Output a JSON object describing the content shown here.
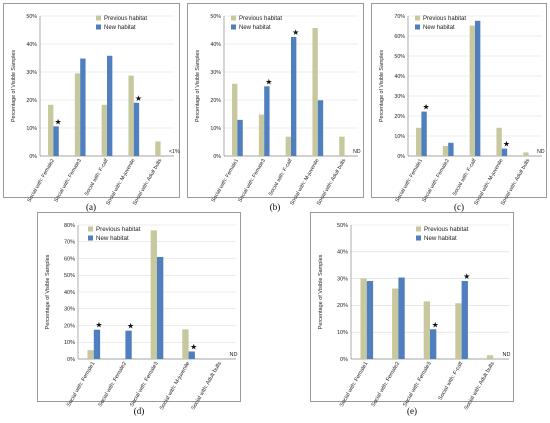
{
  "legend_colors": {
    "previous": "#c8c89e",
    "new": "#4f7fbf"
  },
  "chart_data": [
    {
      "panel": "(a)",
      "type": "bar",
      "ylabel": "Percentage of Visible Samples",
      "ylim": [
        0,
        50
      ],
      "yticks": [
        "0%",
        "10%",
        "20%",
        "30%",
        "40%",
        "50%"
      ],
      "legend": "top-right",
      "categories": [
        "Social with: Female2",
        "Social with: Female3",
        "Social with: F-calf",
        "Social with: M-juvenile",
        "Social with: Adult bulls"
      ],
      "series": [
        {
          "name": "Previous habitat",
          "values": [
            18.3,
            29.5,
            18.3,
            28.7,
            5.2
          ]
        },
        {
          "name": "New habitat",
          "values": [
            10.6,
            34.8,
            35.8,
            19.0,
            null
          ]
        }
      ],
      "stars": [
        0,
        3
      ],
      "annotations": [
        {
          "category": 4,
          "text": "<1%"
        }
      ]
    },
    {
      "panel": "(b)",
      "type": "bar",
      "ylabel": "Percentage of Visible Samples",
      "ylim": [
        0,
        50
      ],
      "yticks": [
        "0%",
        "10%",
        "20%",
        "30%",
        "40%",
        "50%"
      ],
      "legend": "top-left",
      "categories": [
        "Social with: Female1",
        "Social with: Female3",
        "Social with: F-calf",
        "Social with: M-juvenile",
        "Social with: Adult bulls"
      ],
      "series": [
        {
          "name": "Previous habitat",
          "values": [
            25.8,
            14.8,
            6.9,
            45.7,
            6.9
          ]
        },
        {
          "name": "New habitat",
          "values": [
            12.9,
            24.9,
            42.5,
            19.9,
            null
          ]
        }
      ],
      "stars": [
        1,
        2
      ],
      "annotations": [
        {
          "category": 4,
          "text": "ND"
        }
      ]
    },
    {
      "panel": "(c)",
      "type": "bar",
      "ylabel": "Percentage of Visible Samples",
      "ylim": [
        0,
        70
      ],
      "yticks": [
        "0%",
        "10%",
        "20%",
        "30%",
        "40%",
        "50%",
        "60%",
        "70%"
      ],
      "legend": "top-left",
      "categories": [
        "Social with: Female1",
        "Social with: Female2",
        "Social with: F-calf",
        "Social with: M-juvenile",
        "Social with: Adult bulls"
      ],
      "series": [
        {
          "name": "Previous habitat",
          "values": [
            14.1,
            5.0,
            65.2,
            14.1,
            1.8
          ]
        },
        {
          "name": "New habitat",
          "values": [
            22.2,
            6.6,
            67.6,
            3.7,
            null
          ]
        }
      ],
      "stars": [
        0,
        3
      ],
      "annotations": [
        {
          "category": 4,
          "text": "ND"
        }
      ]
    },
    {
      "panel": "(d)",
      "type": "bar",
      "ylabel": "Percentage of Visible Samples",
      "ylim": [
        0,
        80
      ],
      "yticks": [
        "0%",
        "10%",
        "20%",
        "30%",
        "40%",
        "50%",
        "60%",
        "70%",
        "80%"
      ],
      "legend": "top-left",
      "categories": [
        "Social with: Female1",
        "Social with: Female2",
        "Social with: Female3",
        "Social with: M-juvenile",
        "Social with: Adult bulls"
      ],
      "series": [
        {
          "name": "Previous habitat",
          "values": [
            5.3,
            0,
            76.8,
            17.7,
            null
          ]
        },
        {
          "name": "New habitat",
          "values": [
            17.5,
            16.9,
            60.9,
            4.5,
            null
          ]
        }
      ],
      "stars": [
        0,
        1,
        3
      ],
      "annotations": [
        {
          "category": 4,
          "text": "ND"
        }
      ]
    },
    {
      "panel": "(e)",
      "type": "bar",
      "ylabel": "Percentage of Visible Samples",
      "ylim": [
        0,
        50
      ],
      "yticks": [
        "0%",
        "10%",
        "20%",
        "30%",
        "40%",
        "50%"
      ],
      "legend": "top-right",
      "categories": [
        "Social with: Female1",
        "Social with: Female2",
        "Social with: Female3",
        "Social with: F-calf",
        "Social with: Adult bulls"
      ],
      "series": [
        {
          "name": "Previous habitat",
          "values": [
            30.1,
            26.3,
            21.5,
            20.8,
            1.4
          ]
        },
        {
          "name": "New habitat",
          "values": [
            29.1,
            30.4,
            11.1,
            29.1,
            null
          ]
        }
      ],
      "stars": [
        2,
        3
      ],
      "annotations": [
        {
          "category": 4,
          "text": "ND"
        }
      ]
    }
  ]
}
